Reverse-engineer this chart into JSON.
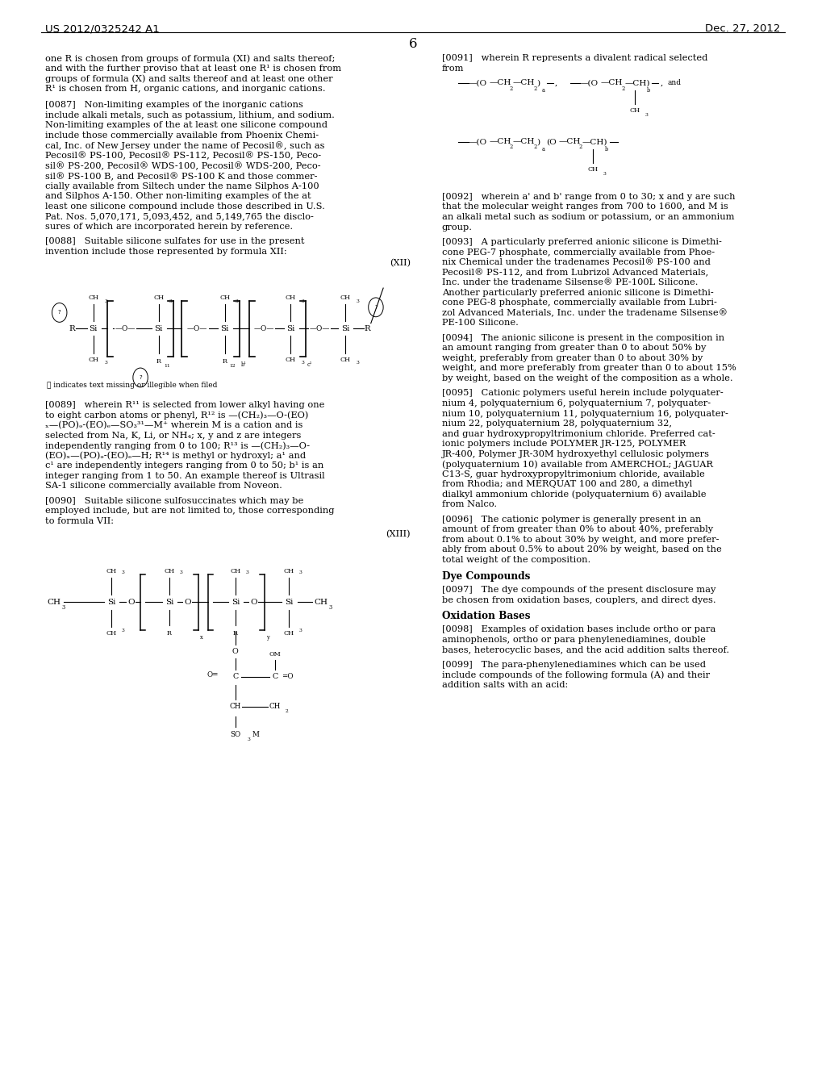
{
  "header_left": "US 2012/0325242 A1",
  "header_right": "Dec. 27, 2012",
  "page_num": "6",
  "bg_color": "#ffffff",
  "text_color": "#000000",
  "body_fs": 8.2,
  "small_fs": 6.5
}
